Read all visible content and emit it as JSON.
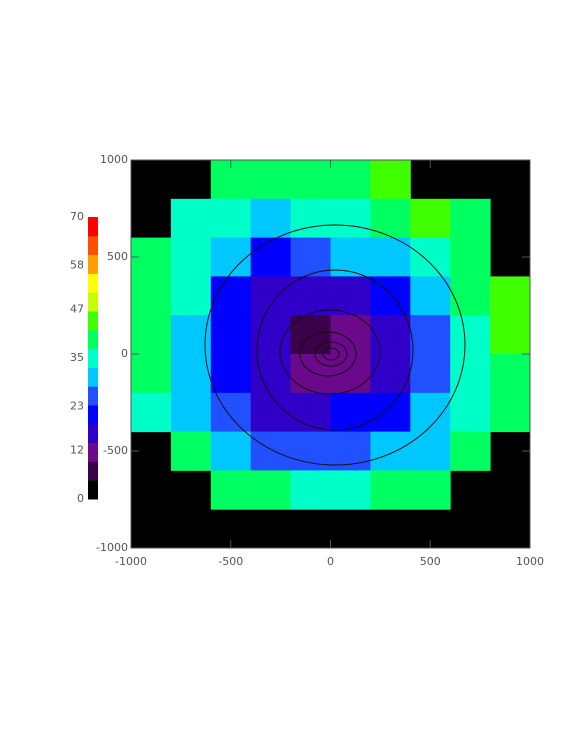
{
  "chart_data": {
    "type": "heatmap",
    "x": [
      -900,
      -700,
      -500,
      -300,
      -100,
      100,
      300,
      500,
      700,
      900
    ],
    "y": [
      900,
      700,
      500,
      300,
      100,
      -100,
      -300,
      -500,
      -700,
      -900
    ],
    "z": [
      [
        null,
        null,
        38,
        40,
        40,
        40,
        42,
        null,
        null,
        null
      ],
      [
        null,
        36,
        35,
        32,
        33,
        35,
        38,
        42,
        40,
        null
      ],
      [
        38,
        35,
        28,
        22,
        25,
        28,
        30,
        34,
        40,
        null
      ],
      [
        40,
        33,
        22,
        15,
        14,
        15,
        20,
        28,
        38,
        42
      ],
      [
        40,
        32,
        20,
        14,
        8,
        10,
        18,
        26,
        36,
        42
      ],
      [
        38,
        30,
        20,
        15,
        10,
        12,
        18,
        26,
        36,
        40
      ],
      [
        36,
        32,
        24,
        18,
        18,
        20,
        22,
        28,
        36,
        40
      ],
      [
        null,
        38,
        30,
        26,
        24,
        26,
        28,
        32,
        38,
        null
      ],
      [
        null,
        null,
        40,
        38,
        36,
        36,
        38,
        40,
        null,
        null
      ],
      [
        null,
        null,
        null,
        null,
        null,
        null,
        null,
        null,
        null,
        null
      ]
    ],
    "xlim": [
      -1000,
      1000
    ],
    "ylim": [
      -1000,
      1000
    ],
    "xticks": [
      -1000,
      -500,
      0,
      500,
      1000
    ],
    "yticks": [
      -1000,
      -500,
      0,
      500,
      1000
    ],
    "background": "#000000",
    "colorbar": {
      "lim": [
        0,
        70
      ],
      "ticks": [
        0,
        12,
        23,
        35,
        47,
        58,
        70
      ],
      "colors": [
        "#000000",
        "#3a0048",
        "#6a0a8a",
        "#3000c8",
        "#0000ff",
        "#2050ff",
        "#00c8ff",
        "#00ffc8",
        "#00ff60",
        "#40ff00",
        "#c8ff00",
        "#ffff00",
        "#ffa000",
        "#ff5000",
        "#ff0000"
      ]
    }
  }
}
